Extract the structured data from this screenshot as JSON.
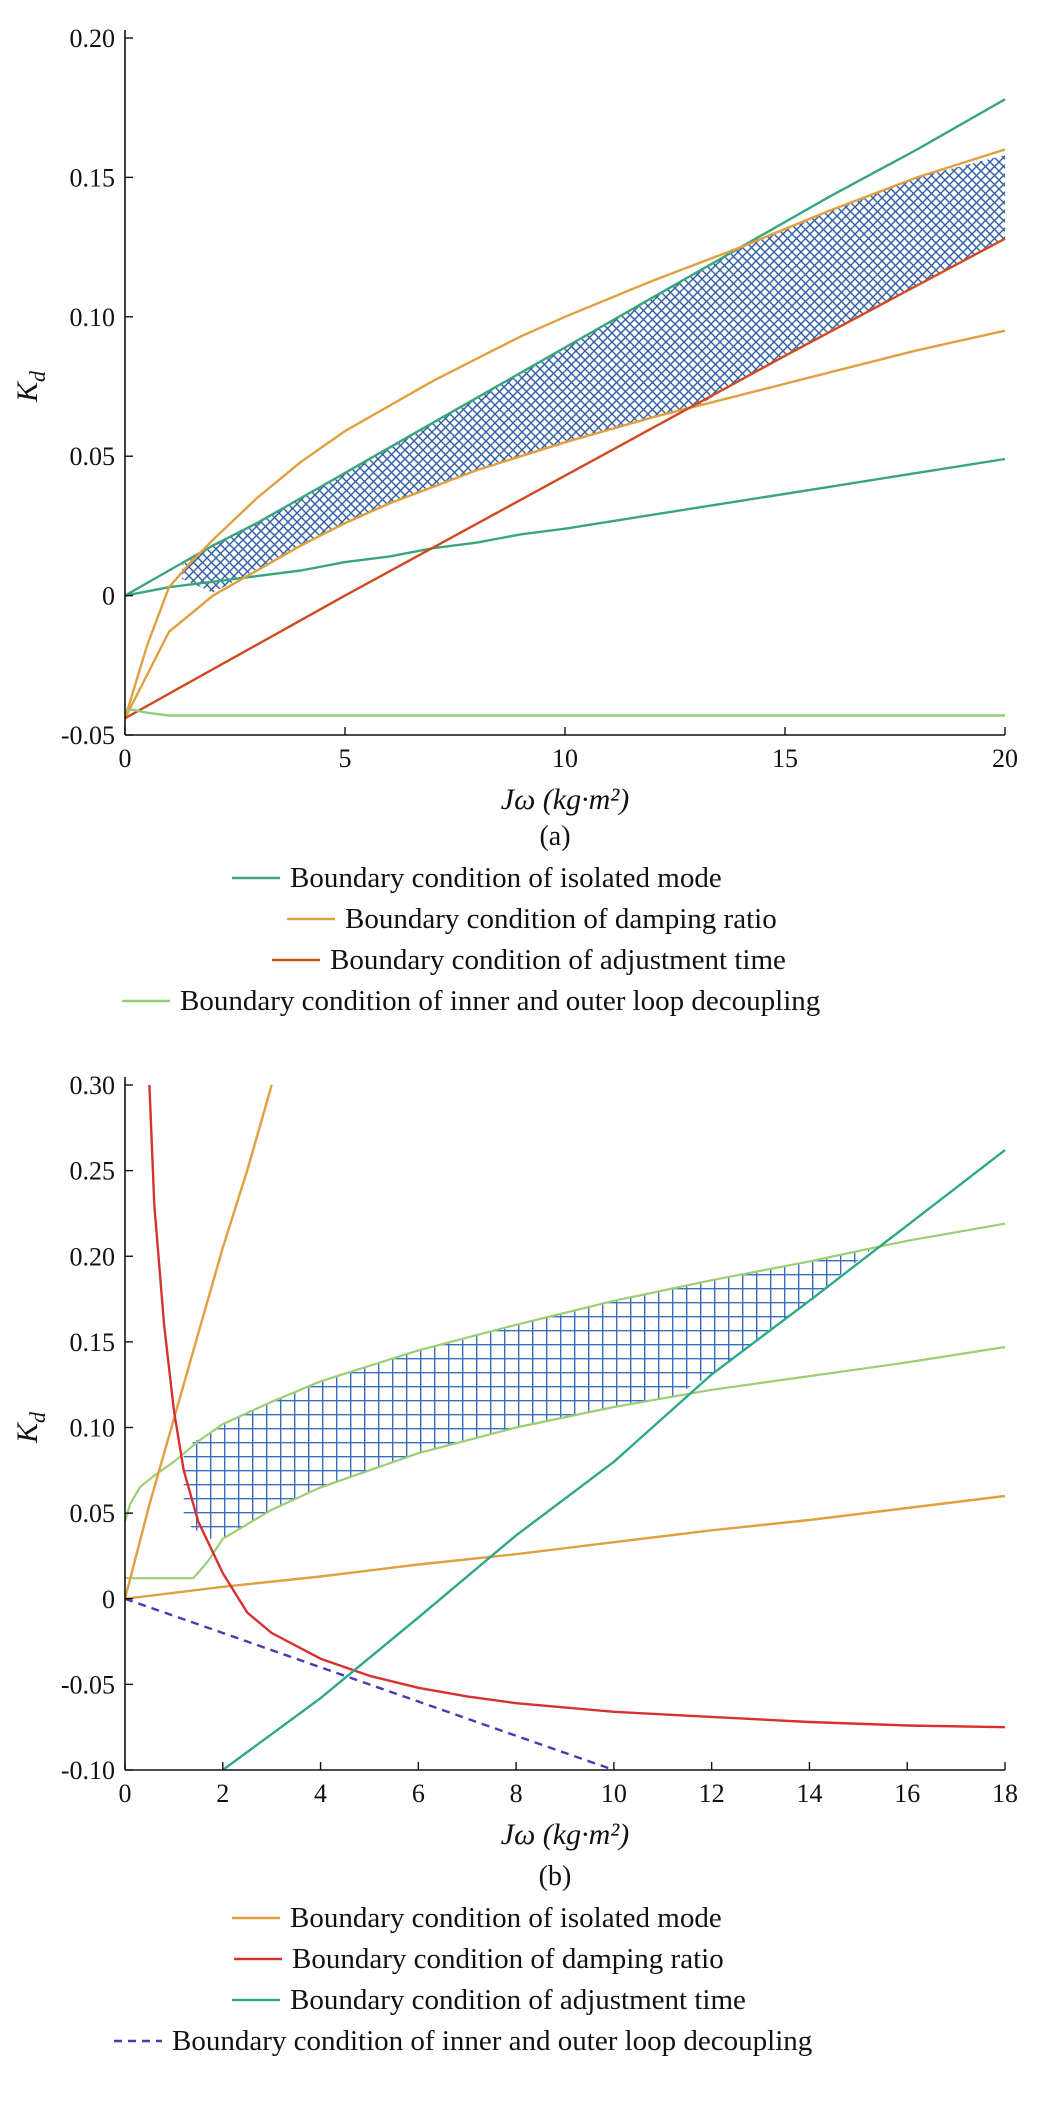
{
  "chart_data": [
    {
      "panel": "(a)",
      "type": "line",
      "xlabel": "Jω (kg·m²)",
      "ylabel": "K_d",
      "xlim": [
        0,
        20
      ],
      "ylim": [
        -0.05,
        0.2
      ],
      "x_ticks": [
        "0",
        "5",
        "10",
        "15",
        "20"
      ],
      "y_ticks": [
        "-0.05",
        "0",
        "0.05",
        "0.10",
        "0.15",
        "0.20"
      ],
      "grid": false,
      "legend_position": "below",
      "feasible_region_fill": "crosshatch",
      "series": [
        {
          "name": "Boundary condition of isolated mode",
          "color": "#3aa57a",
          "lines": [
            {
              "x": [
                0,
                1,
                2,
                3,
                4,
                5,
                6,
                7,
                8,
                9,
                10,
                12,
                14,
                16,
                18,
                20
              ],
              "y": [
                0,
                0.009,
                0.018,
                0.026,
                0.035,
                0.044,
                0.053,
                0.062,
                0.071,
                0.08,
                0.089,
                0.107,
                0.125,
                0.143,
                0.16,
                0.178
              ]
            },
            {
              "x": [
                0,
                1,
                2,
                3,
                4,
                5,
                6,
                7,
                8,
                9,
                10,
                12,
                14,
                16,
                18,
                20
              ],
              "y": [
                0,
                0.003,
                0.005,
                0.007,
                0.009,
                0.012,
                0.014,
                0.017,
                0.019,
                0.022,
                0.024,
                0.029,
                0.034,
                0.039,
                0.044,
                0.049
              ]
            }
          ]
        },
        {
          "name": "Boundary condition of damping ratio",
          "color": "#e0a040",
          "lines": [
            {
              "x": [
                0,
                0.5,
                1,
                1.5,
                2,
                3,
                4,
                5,
                6,
                7,
                8,
                9,
                10,
                12,
                14,
                16,
                18,
                20
              ],
              "y": [
                -0.044,
                -0.018,
                0.003,
                0.012,
                0.02,
                0.035,
                0.048,
                0.059,
                0.068,
                0.077,
                0.085,
                0.093,
                0.1,
                0.113,
                0.125,
                0.138,
                0.15,
                0.16
              ]
            },
            {
              "x": [
                0,
                1,
                2,
                3,
                4,
                5,
                6,
                7,
                8,
                9,
                10,
                12,
                14,
                16,
                18,
                20
              ],
              "y": [
                -0.044,
                -0.013,
                0.0,
                0.009,
                0.018,
                0.026,
                0.033,
                0.039,
                0.045,
                0.05,
                0.055,
                0.064,
                0.072,
                0.08,
                0.088,
                0.095
              ]
            }
          ]
        },
        {
          "name": "Boundary condition of adjustment time",
          "color": "#d04a20",
          "lines": [
            {
              "x": [
                0,
                5,
                10,
                15,
                20
              ],
              "y": [
                -0.044,
                0.0,
                0.043,
                0.086,
                0.128
              ]
            }
          ]
        },
        {
          "name": "Boundary condition of inner and outer loop decoupling",
          "color": "#8fcf7a",
          "lines": [
            {
              "x": [
                0,
                0.2,
                0.5,
                1,
                2,
                5,
                10,
                15,
                20
              ],
              "y": [
                -0.041,
                -0.041,
                -0.042,
                -0.043,
                -0.043,
                -0.043,
                -0.043,
                -0.043,
                -0.043
              ]
            }
          ]
        }
      ],
      "feasible_region": {
        "upper": {
          "x": [
            1.3,
            2,
            4,
            6,
            8,
            10,
            12,
            14,
            16,
            18,
            20
          ],
          "y": [
            0.011,
            0.018,
            0.035,
            0.053,
            0.071,
            0.089,
            0.107,
            0.125,
            0.138,
            0.15,
            0.158
          ]
        },
        "lower": {
          "x": [
            1.3,
            2,
            4,
            6,
            8,
            10,
            12,
            13,
            14,
            16,
            18,
            20
          ],
          "y": [
            0.006,
            0.001,
            0.018,
            0.033,
            0.045,
            0.055,
            0.064,
            0.068,
            0.077,
            0.095,
            0.111,
            0.128
          ]
        }
      }
    },
    {
      "panel": "(b)",
      "type": "line",
      "xlabel": "Jω (kg·m²)",
      "ylabel": "K_d",
      "xlim": [
        0,
        18
      ],
      "ylim": [
        -0.1,
        0.3
      ],
      "x_ticks": [
        "0",
        "2",
        "4",
        "6",
        "8",
        "10",
        "12",
        "14",
        "16",
        "18"
      ],
      "y_ticks": [
        "-0.10",
        "-0.05",
        "0",
        "0.05",
        "0.10",
        "0.15",
        "0.20",
        "0.25",
        "0.30"
      ],
      "grid": false,
      "legend_position": "below",
      "feasible_region_fill": "grid",
      "series": [
        {
          "name": "Boundary condition of isolated mode",
          "color": "#e0a040",
          "dash": false,
          "lines": [
            {
              "x": [
                0,
                0.5,
                1,
                1.5,
                2,
                2.5,
                3
              ],
              "y": [
                0,
                0.055,
                0.105,
                0.155,
                0.205,
                0.25,
                0.3
              ]
            },
            {
              "x": [
                0,
                2,
                4,
                6,
                8,
                10,
                12,
                14,
                16,
                18
              ],
              "y": [
                0,
                0.007,
                0.013,
                0.02,
                0.026,
                0.033,
                0.04,
                0.046,
                0.053,
                0.06
              ]
            }
          ]
        },
        {
          "name": "Boundary condition of damping ratio",
          "color": "#d83030",
          "dash": false,
          "lines": [
            {
              "x": [
                0.5,
                0.6,
                0.8,
                1,
                1.2,
                1.5,
                2,
                2.5,
                3,
                4,
                5,
                6,
                7,
                8,
                10,
                12,
                14,
                16,
                18
              ],
              "y": [
                0.3,
                0.23,
                0.16,
                0.11,
                0.075,
                0.045,
                0.015,
                -0.008,
                -0.02,
                -0.035,
                -0.045,
                -0.052,
                -0.057,
                -0.061,
                -0.066,
                -0.069,
                -0.072,
                -0.074,
                -0.075
              ]
            }
          ]
        },
        {
          "name": "Boundary condition of adjustment time",
          "color": "#2fa88a",
          "dash": false,
          "lines": [
            {
              "x": [
                2,
                4,
                6,
                8,
                10,
                12,
                14,
                16,
                18
              ],
              "y": [
                -0.1,
                -0.058,
                -0.011,
                0.037,
                0.08,
                0.131,
                0.174,
                0.218,
                0.262
              ]
            }
          ]
        },
        {
          "name": "Boundary condition of inner and outer loop decoupling",
          "color": "#4a3ab0",
          "dash": true,
          "lines": [
            {
              "x": [
                0,
                2,
                4,
                6,
                8,
                10
              ],
              "y": [
                0,
                -0.02,
                -0.04,
                -0.06,
                -0.08,
                -0.1
              ]
            }
          ]
        }
      ],
      "extra_lines": [
        {
          "color": "#9ccf74",
          "x": [
            0,
            0.1,
            0.3,
            0.6,
            1,
            1.5,
            2,
            3,
            4,
            6,
            8,
            10,
            12,
            14,
            16,
            18
          ],
          "y": [
            0.045,
            0.055,
            0.065,
            0.072,
            0.08,
            0.092,
            0.102,
            0.115,
            0.127,
            0.145,
            0.16,
            0.174,
            0.186,
            0.197,
            0.209,
            0.219
          ]
        },
        {
          "color": "#9ccf74",
          "x": [
            0,
            1,
            1.4,
            1.7,
            2,
            3,
            4,
            6,
            8,
            10,
            12,
            14,
            16,
            18
          ],
          "y": [
            0.012,
            0.012,
            0.012,
            0.022,
            0.035,
            0.052,
            0.065,
            0.085,
            0.1,
            0.112,
            0.122,
            0.13,
            0.138,
            0.147
          ]
        }
      ],
      "feasible_region": {
        "upper": {
          "x": [
            1.2,
            2,
            3,
            4,
            6,
            8,
            10,
            12,
            14,
            15.3
          ],
          "y": [
            0.088,
            0.102,
            0.115,
            0.127,
            0.145,
            0.16,
            0.174,
            0.186,
            0.197,
            0.205
          ]
        },
        "lower": {
          "x": [
            1.2,
            1.7,
            2,
            3,
            4,
            6,
            8,
            10,
            11.2,
            12,
            14,
            15.3
          ],
          "y": [
            0.045,
            0.035,
            0.035,
            0.052,
            0.065,
            0.085,
            0.1,
            0.112,
            0.118,
            0.131,
            0.174,
            0.205
          ]
        }
      }
    }
  ]
}
